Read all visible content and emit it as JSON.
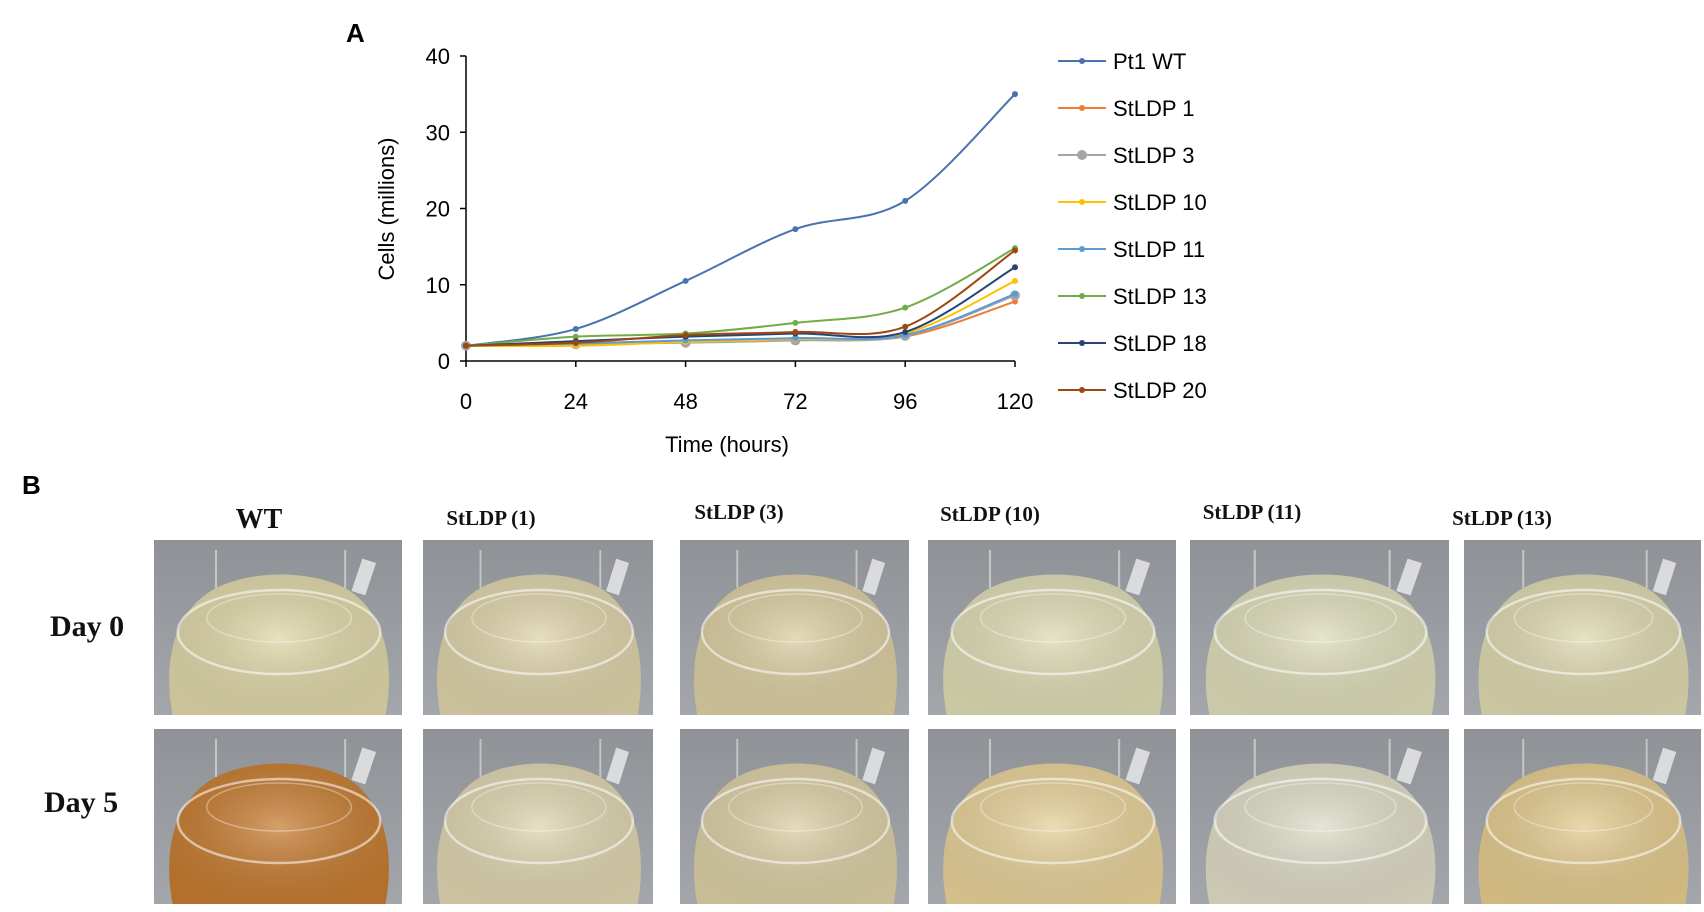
{
  "panels": {
    "a": "A",
    "b": "B"
  },
  "chart_data": {
    "type": "line",
    "xlabel": "Time (hours)",
    "ylabel": "Cells (millions)",
    "x": [
      0,
      24,
      48,
      72,
      96,
      120
    ],
    "xticks": [
      "0",
      "24",
      "48",
      "72",
      "96",
      "120"
    ],
    "yticks": [
      "0",
      "10",
      "20",
      "30",
      "40"
    ],
    "ylim": [
      0,
      40
    ],
    "legend_position": "right",
    "series": [
      {
        "name": "Pt1 WT",
        "color": "#4A72B0",
        "values": [
          2.0,
          4.2,
          10.5,
          17.3,
          21.0,
          35.0
        ]
      },
      {
        "name": "StLDP 1",
        "color": "#ED7D31",
        "values": [
          2.0,
          2.1,
          2.6,
          2.9,
          3.2,
          7.8
        ]
      },
      {
        "name": "StLDP 3",
        "color": "#A5A5A5",
        "values": [
          2.0,
          2.2,
          2.4,
          2.7,
          3.3,
          8.6
        ]
      },
      {
        "name": "StLDP 10",
        "color": "#FFC000",
        "values": [
          2.0,
          2.0,
          2.5,
          2.9,
          3.6,
          10.5
        ]
      },
      {
        "name": "StLDP 11",
        "color": "#5B9BD5",
        "values": [
          2.0,
          2.3,
          2.7,
          3.0,
          3.4,
          8.8
        ]
      },
      {
        "name": "StLDP 13",
        "color": "#70AD47",
        "values": [
          2.0,
          3.2,
          3.6,
          5.0,
          7.0,
          14.8
        ]
      },
      {
        "name": "StLDP 18",
        "color": "#264478",
        "values": [
          2.0,
          2.6,
          3.2,
          3.6,
          3.8,
          12.3
        ]
      },
      {
        "name": "StLDP 20",
        "color": "#9E480E",
        "values": [
          2.0,
          2.4,
          3.4,
          3.8,
          4.5,
          14.5
        ]
      }
    ]
  },
  "photo_grid": {
    "columns": [
      "WT",
      "StLDP (1)",
      "StLDP (3)",
      "StLDP (10)",
      "StLDP (11)",
      "StLDP (13)"
    ],
    "rows": [
      "Day 0",
      "Day 5"
    ],
    "liquid_colors": [
      [
        "#DDD5A6",
        "#DCD1A8",
        "#D9CCA0",
        "#DCDAB2",
        "#DCDBB8",
        "#DCD7AE"
      ],
      [
        "#C47A2E",
        "#DCD3AE",
        "#D9CDA3",
        "#E6CF97",
        "#DDDAC4",
        "#E2C98C"
      ]
    ]
  }
}
